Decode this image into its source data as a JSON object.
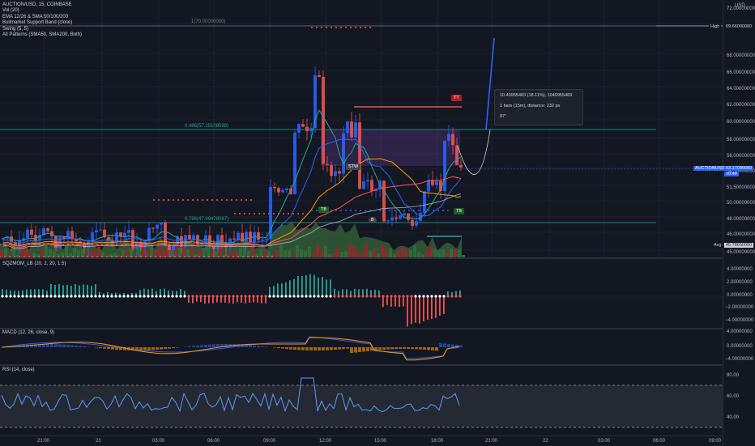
{
  "header": {
    "symbol_line": "AUCTION/USD, 15, COINBASE",
    "indicators": [
      "Vol (20)",
      "EMA 12/26 & SMA 50/100/200",
      "Bullmarket Support Band (close)",
      "Swing (5, 5)",
      "All Patterns (SMA50, SMA200, Both)"
    ]
  },
  "price_axis": {
    "currency": "USD",
    "labels": [
      "72.00000000",
      "70.00000000",
      "68.00000000",
      "66.00000000",
      "64.00000000",
      "62.00000000",
      "60.00000000",
      "58.00000000",
      "56.00000000",
      "54.50000000",
      "51.50000000",
      "50.00000000",
      "48.00000000",
      "46.00000000",
      "45.00000000"
    ],
    "high_tag": {
      "label": "High",
      "value": "69.66000000"
    },
    "current_tag": {
      "label": "AUCTIONUSD",
      "value": "53.17000000",
      "countdown": "10:48"
    },
    "avg_tag": {
      "label": "Avg",
      "value": "45.78650000"
    }
  },
  "fib": {
    "top": "1(70.00000000)",
    "mid": "0.486(57.25108598)",
    "low": "0.786(47.99478087)"
  },
  "tooltip": {
    "line1": "10.40955483 (18.11%), 1040955483",
    "line2": "1 bars (15m), distance: 232 px",
    "line3": "87°"
  },
  "badges": {
    "tt": "TT",
    "tb": "TB",
    "stw": "STW",
    "tb2": "TB",
    "b": "B"
  },
  "sqz": {
    "title": "SQZMOM_LB (20, 2, 20, 1.5)",
    "axis": [
      "4.00000000",
      "2.00000000",
      "0.00000000",
      "−2.00000000",
      "−4.00000000"
    ]
  },
  "macd": {
    "title": "MACD (12, 26, close, 9)",
    "axis": [
      "4.00000000",
      "0.00000000",
      "−4.00000000"
    ]
  },
  "rsi": {
    "title": "RSI (14, close)",
    "axis": [
      "80.00",
      "60.00",
      "40.00"
    ]
  },
  "time_axis": [
    "21:00",
    "21",
    "03:00",
    "06:00",
    "09:00",
    "12:00",
    "15:00",
    "18:00",
    "21:00",
    "22",
    "03:00",
    "06:00",
    "09:00"
  ],
  "colors": {
    "up": "#26a69a",
    "down": "#ef5350",
    "blue": "#2962ff",
    "orange": "#ff9800"
  }
}
